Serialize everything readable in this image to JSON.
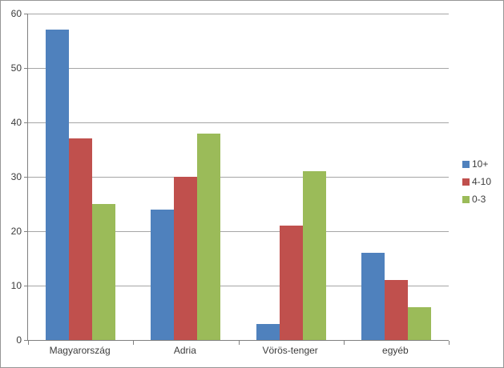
{
  "chart_data": {
    "type": "bar",
    "categories": [
      "Magyarország",
      "Adria",
      "Vörös-tenger",
      "egyéb"
    ],
    "series": [
      {
        "name": "10+",
        "color": "#4F81BD",
        "values": [
          57,
          24,
          3,
          16
        ]
      },
      {
        "name": "4-10",
        "color": "#C0504D",
        "values": [
          37,
          30,
          21,
          11
        ]
      },
      {
        "name": "0-3",
        "color": "#9BBB59",
        "values": [
          25,
          38,
          31,
          6
        ]
      }
    ],
    "title": "",
    "xlabel": "",
    "ylabel": "",
    "ylim": [
      0,
      60
    ],
    "ytick_step": 10,
    "yticks": [
      0,
      10,
      20,
      30,
      40,
      50,
      60
    ],
    "grid": true,
    "legend_position": "right"
  },
  "colors": {
    "background": "#FFFFFF",
    "frame_border": "#969696",
    "gridline": "#A6A6A6",
    "axis": "#808080",
    "text": "#3C3C3C"
  }
}
